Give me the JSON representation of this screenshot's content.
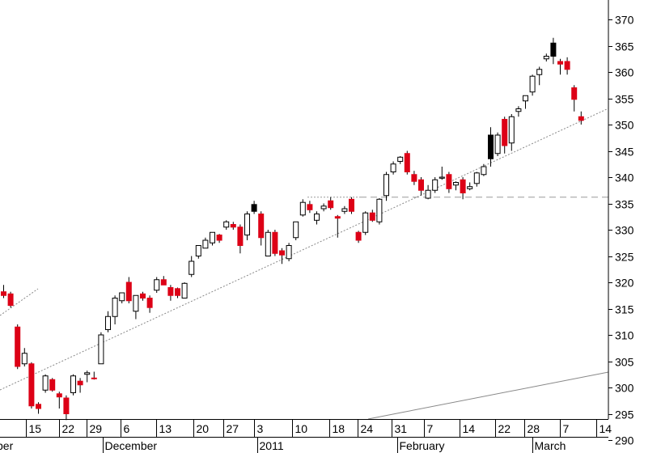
{
  "chart_data": {
    "type": "candlestick",
    "y_axis": {
      "ticks": [
        290,
        295,
        300,
        305,
        310,
        315,
        320,
        325,
        330,
        335,
        340,
        345,
        350,
        355,
        360,
        365,
        370
      ],
      "tick_labels": [
        "290",
        "295",
        "300",
        "305",
        "310",
        "315",
        "320",
        "325",
        "330",
        "335",
        "340",
        "345",
        "350",
        "355",
        "360",
        "365",
        "370"
      ],
      "side": "right"
    },
    "x_axis": {
      "day_ticks": [
        "15",
        "22",
        "29",
        "6",
        "13",
        "20",
        "27",
        "3",
        "10",
        "18",
        "24",
        "31",
        "7",
        "14",
        "22",
        "28",
        "7",
        "14"
      ],
      "month_labels": [
        "ber",
        "December",
        "2011",
        "February",
        "March"
      ]
    },
    "colors": {
      "up_body": "#ffffff",
      "down_body": "#dd0016",
      "outline": "#000000",
      "highlight_body": "#000000",
      "trendline": "#888888",
      "support_line": "#999999"
    },
    "support_level": 336.2,
    "candles": [
      {
        "o": 317.5,
        "h": 319.5,
        "l": 317,
        "c": 318.2,
        "color": "down"
      },
      {
        "o": 317.8,
        "h": 318.2,
        "l": 315.2,
        "c": 315.6,
        "color": "down"
      },
      {
        "o": 311.5,
        "h": 312,
        "l": 303.5,
        "c": 304,
        "color": "down"
      },
      {
        "o": 304.5,
        "h": 307.5,
        "l": 304,
        "c": 306.5,
        "color": "up"
      },
      {
        "o": 304.5,
        "h": 304.8,
        "l": 296,
        "c": 296.5,
        "color": "down"
      },
      {
        "o": 296.8,
        "h": 297.2,
        "l": 295,
        "c": 296,
        "color": "down"
      },
      {
        "o": 299.5,
        "h": 302.5,
        "l": 299,
        "c": 302.2,
        "color": "up"
      },
      {
        "o": 301.5,
        "h": 301.8,
        "l": 299.2,
        "c": 299.5,
        "color": "down"
      },
      {
        "o": 298.8,
        "h": 299.2,
        "l": 296,
        "c": 298.2,
        "color": "down"
      },
      {
        "o": 295,
        "h": 298.5,
        "l": 293.8,
        "c": 298,
        "color": "down"
      },
      {
        "o": 299,
        "h": 302.5,
        "l": 298.5,
        "c": 302.2,
        "color": "up"
      },
      {
        "o": 300.5,
        "h": 301.8,
        "l": 299,
        "c": 301.2,
        "color": "down"
      },
      {
        "o": 302.5,
        "h": 303.2,
        "l": 301,
        "c": 302.8,
        "color": "up"
      },
      {
        "o": 301.8,
        "h": 303,
        "l": 301.5,
        "c": 301.8,
        "color": "down"
      },
      {
        "o": 304.5,
        "h": 310.5,
        "l": 304.5,
        "c": 310,
        "color": "up"
      },
      {
        "o": 311,
        "h": 314.5,
        "l": 310.5,
        "c": 313.5,
        "color": "up"
      },
      {
        "o": 313.5,
        "h": 317.5,
        "l": 312,
        "c": 317,
        "color": "up"
      },
      {
        "o": 316.5,
        "h": 318,
        "l": 316,
        "c": 318,
        "color": "up"
      },
      {
        "o": 320,
        "h": 321,
        "l": 316,
        "c": 316.5,
        "color": "down"
      },
      {
        "o": 314.5,
        "h": 317.5,
        "l": 313,
        "c": 317.5,
        "color": "up"
      },
      {
        "o": 317.8,
        "h": 318.2,
        "l": 316.5,
        "c": 317,
        "color": "down"
      },
      {
        "o": 317,
        "h": 317.5,
        "l": 314.2,
        "c": 315.2,
        "color": "down"
      },
      {
        "o": 318.5,
        "h": 321,
        "l": 318,
        "c": 320.5,
        "color": "up"
      },
      {
        "o": 320.5,
        "h": 321.2,
        "l": 319.5,
        "c": 319.5,
        "color": "down"
      },
      {
        "o": 319,
        "h": 319.5,
        "l": 316.5,
        "c": 317.5,
        "color": "down"
      },
      {
        "o": 318.8,
        "h": 319,
        "l": 317,
        "c": 317.5,
        "color": "down"
      },
      {
        "o": 317,
        "h": 320,
        "l": 317,
        "c": 319.8,
        "color": "up"
      },
      {
        "o": 321.5,
        "h": 325,
        "l": 321,
        "c": 324,
        "color": "up"
      },
      {
        "o": 325,
        "h": 327,
        "l": 324.5,
        "c": 327,
        "color": "up"
      },
      {
        "o": 326.5,
        "h": 328.5,
        "l": 326.5,
        "c": 328,
        "color": "up"
      },
      {
        "o": 327.5,
        "h": 329.5,
        "l": 327,
        "c": 329.5,
        "color": "up"
      },
      {
        "o": 329,
        "h": 329.2,
        "l": 327.5,
        "c": 328,
        "color": "down"
      },
      {
        "o": 330.5,
        "h": 331.8,
        "l": 330,
        "c": 331.5,
        "color": "up"
      },
      {
        "o": 331,
        "h": 331.5,
        "l": 330,
        "c": 330.5,
        "color": "down"
      },
      {
        "o": 330.5,
        "h": 331,
        "l": 325.5,
        "c": 327,
        "color": "down"
      },
      {
        "o": 329,
        "h": 333.5,
        "l": 328,
        "c": 333,
        "color": "up"
      },
      {
        "o": 333.5,
        "h": 335.5,
        "l": 333,
        "c": 334.8,
        "color": "highlight"
      },
      {
        "o": 333,
        "h": 333.5,
        "l": 327,
        "c": 328.5,
        "color": "down"
      },
      {
        "o": 325,
        "h": 330,
        "l": 325,
        "c": 329.5,
        "color": "up"
      },
      {
        "o": 329.5,
        "h": 330,
        "l": 325,
        "c": 325.5,
        "color": "down"
      },
      {
        "o": 326,
        "h": 326.5,
        "l": 323.5,
        "c": 325.2,
        "color": "down"
      },
      {
        "o": 324.5,
        "h": 327.5,
        "l": 324,
        "c": 327,
        "color": "up"
      },
      {
        "o": 328.5,
        "h": 331.5,
        "l": 328,
        "c": 331.5,
        "color": "up"
      },
      {
        "o": 332.8,
        "h": 335.8,
        "l": 332.5,
        "c": 335.2,
        "color": "up"
      },
      {
        "o": 334.8,
        "h": 335.5,
        "l": 333.2,
        "c": 333.8,
        "color": "down"
      },
      {
        "o": 331.8,
        "h": 333.5,
        "l": 331,
        "c": 333,
        "color": "up"
      },
      {
        "o": 334,
        "h": 335,
        "l": 333.5,
        "c": 334.5,
        "color": "up"
      },
      {
        "o": 335.5,
        "h": 336.2,
        "l": 333.8,
        "c": 334.2,
        "color": "down"
      },
      {
        "o": 332.5,
        "h": 332.8,
        "l": 328.5,
        "c": 332.2,
        "color": "down"
      },
      {
        "o": 333.5,
        "h": 334.5,
        "l": 333,
        "c": 334,
        "color": "up"
      },
      {
        "o": 335.8,
        "h": 336.2,
        "l": 333,
        "c": 333.5,
        "color": "down"
      },
      {
        "o": 329.5,
        "h": 329.8,
        "l": 327.5,
        "c": 328,
        "color": "down"
      },
      {
        "o": 329.5,
        "h": 333.5,
        "l": 329,
        "c": 333.2,
        "color": "up"
      },
      {
        "o": 333.2,
        "h": 333.8,
        "l": 331.5,
        "c": 331.8,
        "color": "down"
      },
      {
        "o": 331.5,
        "h": 336,
        "l": 331,
        "c": 335.8,
        "color": "up"
      },
      {
        "o": 336.5,
        "h": 341,
        "l": 335.5,
        "c": 340.5,
        "color": "up"
      },
      {
        "o": 341,
        "h": 343,
        "l": 340.5,
        "c": 342.5,
        "color": "up"
      },
      {
        "o": 343,
        "h": 344,
        "l": 342.5,
        "c": 343.8,
        "color": "up"
      },
      {
        "o": 344.5,
        "h": 345,
        "l": 340.5,
        "c": 341,
        "color": "down"
      },
      {
        "o": 340.5,
        "h": 341.2,
        "l": 338.5,
        "c": 339.2,
        "color": "down"
      },
      {
        "o": 339.5,
        "h": 340,
        "l": 336.5,
        "c": 337.5,
        "color": "down"
      },
      {
        "o": 336,
        "h": 338.5,
        "l": 335.8,
        "c": 337.5,
        "color": "up"
      },
      {
        "o": 337.5,
        "h": 340,
        "l": 337,
        "c": 339.5,
        "color": "up"
      },
      {
        "o": 339.8,
        "h": 342,
        "l": 339.5,
        "c": 340,
        "color": "up"
      },
      {
        "o": 340.5,
        "h": 341,
        "l": 337,
        "c": 337.8,
        "color": "down"
      },
      {
        "o": 338.5,
        "h": 339.2,
        "l": 337.5,
        "c": 339,
        "color": "up"
      },
      {
        "o": 339.5,
        "h": 340,
        "l": 335.8,
        "c": 337,
        "color": "down"
      },
      {
        "o": 337.8,
        "h": 339,
        "l": 337.5,
        "c": 338.2,
        "color": "up"
      },
      {
        "o": 338.8,
        "h": 341,
        "l": 338.2,
        "c": 340.8,
        "color": "up"
      },
      {
        "o": 340.5,
        "h": 342.5,
        "l": 340.2,
        "c": 342,
        "color": "up"
      },
      {
        "o": 343.5,
        "h": 349.5,
        "l": 342,
        "c": 348,
        "color": "highlight"
      },
      {
        "o": 344.5,
        "h": 348.5,
        "l": 344,
        "c": 348,
        "color": "up"
      },
      {
        "o": 351,
        "h": 351.5,
        "l": 344.5,
        "c": 346,
        "color": "down"
      },
      {
        "o": 346.5,
        "h": 352,
        "l": 345,
        "c": 351.5,
        "color": "up"
      },
      {
        "o": 352.5,
        "h": 353.5,
        "l": 351.5,
        "c": 353,
        "color": "up"
      },
      {
        "o": 354.5,
        "h": 355.5,
        "l": 353,
        "c": 355.5,
        "color": "up"
      },
      {
        "o": 356.2,
        "h": 359.5,
        "l": 355.5,
        "c": 359.2,
        "color": "up"
      },
      {
        "o": 359.5,
        "h": 361,
        "l": 357.5,
        "c": 360.5,
        "color": "up"
      },
      {
        "o": 362.5,
        "h": 363.5,
        "l": 362,
        "c": 363,
        "color": "up"
      },
      {
        "o": 363,
        "h": 366.5,
        "l": 361.5,
        "c": 365.5,
        "color": "highlight"
      },
      {
        "o": 362,
        "h": 362.5,
        "l": 359.5,
        "c": 361.5,
        "color": "down"
      },
      {
        "o": 362,
        "h": 362.8,
        "l": 359.5,
        "c": 360.5,
        "color": "down"
      },
      {
        "o": 357,
        "h": 357.5,
        "l": 352.5,
        "c": 354.8,
        "color": "down"
      },
      {
        "o": 350.8,
        "h": 352.5,
        "l": 350,
        "c": 351.5,
        "color": "down"
      }
    ]
  }
}
